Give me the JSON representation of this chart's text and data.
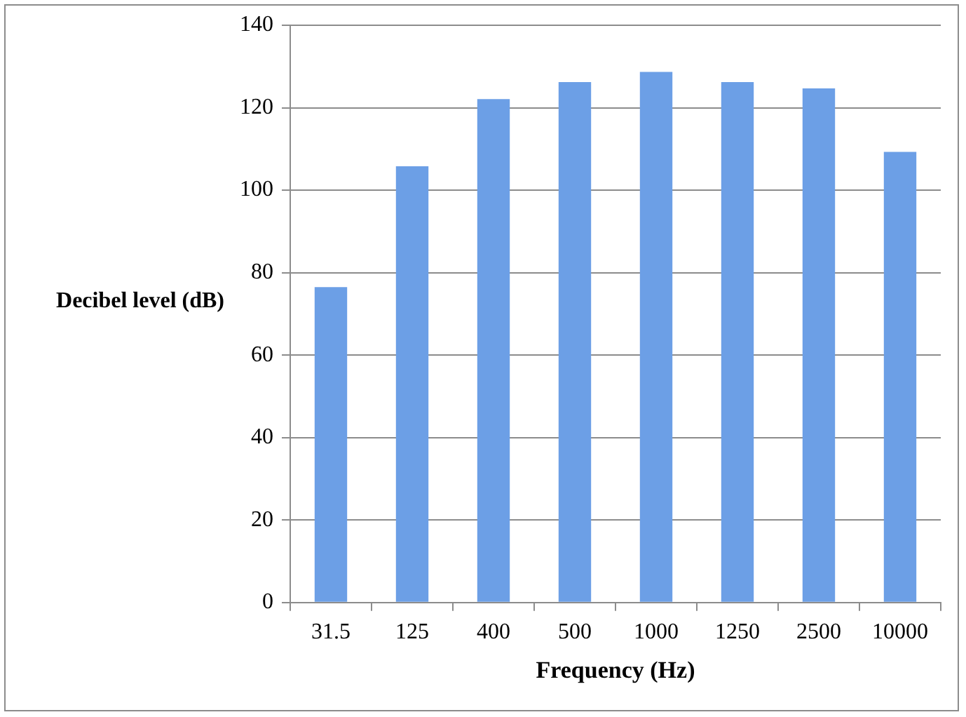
{
  "chart_data": {
    "type": "bar",
    "xlabel": "Frequency (Hz)",
    "ylabel": "Decibel level (dB)",
    "categories": [
      "31.5",
      "125",
      "400",
      "500",
      "1000",
      "1250",
      "2500",
      "10000"
    ],
    "values": [
      76.5,
      105.8,
      122.1,
      126.2,
      128.7,
      126.2,
      124.7,
      109.3
    ],
    "color": "#6c9fe6",
    "ylim": [
      0,
      140
    ],
    "yticks": [
      0,
      20,
      40,
      60,
      80,
      100,
      120,
      140
    ],
    "grid": "y",
    "legend": false
  }
}
